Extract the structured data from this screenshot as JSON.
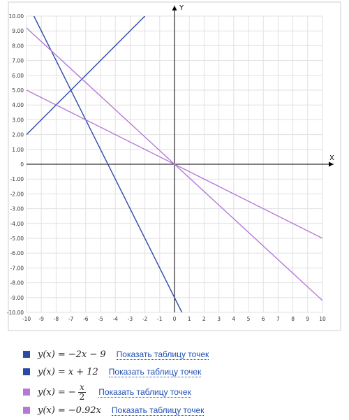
{
  "chart_data": {
    "type": "line",
    "x_axis_label": "X",
    "y_axis_label": "Y",
    "xlim": [
      -10,
      10
    ],
    "ylim": [
      -10,
      10
    ],
    "grid": true,
    "x_ticks": [
      -10,
      -9,
      -8,
      -7,
      -6,
      -5,
      -4,
      -3,
      -2,
      -1,
      0,
      1,
      2,
      3,
      4,
      5,
      6,
      7,
      8,
      9,
      10
    ],
    "x_tick_labels": [
      "-10",
      "-9",
      "-8",
      "-7",
      "-6",
      "-5",
      "-4",
      "-3",
      "-2",
      "-1",
      "0",
      "1",
      "2",
      "3",
      "4",
      "5",
      "6",
      "7",
      "8",
      "9",
      "10"
    ],
    "y_ticks": [
      10,
      9,
      8,
      7,
      6,
      5,
      4,
      3,
      2,
      1,
      0,
      -1,
      -2,
      -3,
      -4,
      -5,
      -6,
      -7,
      -8,
      -9,
      -10
    ],
    "y_tick_labels": [
      "10.00",
      "9.00",
      "8.00",
      "7.00",
      "6.00",
      "5.00",
      "4.00",
      "3.00",
      "2.00",
      "1.00",
      "0",
      "-1.00",
      "-2.00",
      "-3.00",
      "-4.00",
      "-5.00",
      "-6.00",
      "-7.00",
      "-8.00",
      "-9.00",
      "-10.00"
    ],
    "series": [
      {
        "color": "#2b4aa8",
        "points": [
          [
            -9.5,
            10
          ],
          [
            0.5,
            -10
          ]
        ]
      },
      {
        "color": "#2b4aa8",
        "points": [
          [
            -10,
            2
          ],
          [
            -2,
            10
          ]
        ]
      },
      {
        "color": "#b678d8",
        "points": [
          [
            -10,
            5
          ],
          [
            10,
            -5
          ]
        ]
      },
      {
        "color": "#b678d8",
        "points": [
          [
            -10,
            9.2
          ],
          [
            10,
            -9.2
          ]
        ]
      }
    ]
  },
  "legend": {
    "link_text": "Показать таблицу точек",
    "items": [
      {
        "color": "#2b4aa8",
        "lhs": "y(x)",
        "eq": "=",
        "rhs": "−2x − 9"
      },
      {
        "color": "#2b4aa8",
        "lhs": "y(x)",
        "eq": "=",
        "rhs": "x + 12"
      },
      {
        "color": "#b678d8",
        "lhs": "y(x)",
        "eq": "=",
        "neg": "−",
        "num": "x",
        "den": "2"
      },
      {
        "color": "#b678d8",
        "lhs": "y(x)",
        "eq": "=",
        "rhs": "−0.92x"
      }
    ]
  }
}
